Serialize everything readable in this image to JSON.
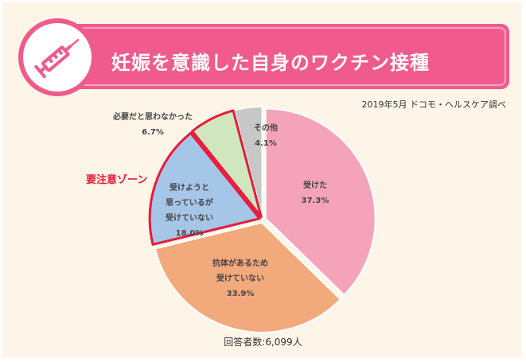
{
  "title": "妊娠を意識した自身のワクチン接種",
  "source": "2019年5月 ドコモ・ヘルスケア調べ",
  "zone_label": "要注意ゾーン",
  "respondents": "回答者数:6,099人",
  "icon": "syringe-icon",
  "colors": {
    "accent": "#f05a8c",
    "highlight_border": "#e8193a",
    "background": "#fdf6e8"
  },
  "chart_data": {
    "type": "pie",
    "title": "妊娠を意識した自身のワクチン接種",
    "slices": [
      {
        "label_lines": [
          "受けた"
        ],
        "value": 37.3,
        "value_label": "37.3%",
        "color": "#f5a3ba",
        "highlighted": false
      },
      {
        "label_lines": [
          "抗体があるため",
          "受けていない"
        ],
        "value": 33.9,
        "value_label": "33.9%",
        "color": "#f2a97b",
        "highlighted": false
      },
      {
        "label_lines": [
          "受けようと",
          "思っているが",
          "受けていない"
        ],
        "value": 18.0,
        "value_label": "18.0%",
        "color": "#a6c6e8",
        "highlighted": true
      },
      {
        "label_lines": [
          "必要だと思わなかった"
        ],
        "value": 6.7,
        "value_label": "6.7%",
        "color": "#cfe6bf",
        "highlighted": true
      },
      {
        "label_lines": [
          "その他"
        ],
        "value": 4.1,
        "value_label": "4.1%",
        "color": "#c7c7c7",
        "highlighted": false
      }
    ]
  }
}
